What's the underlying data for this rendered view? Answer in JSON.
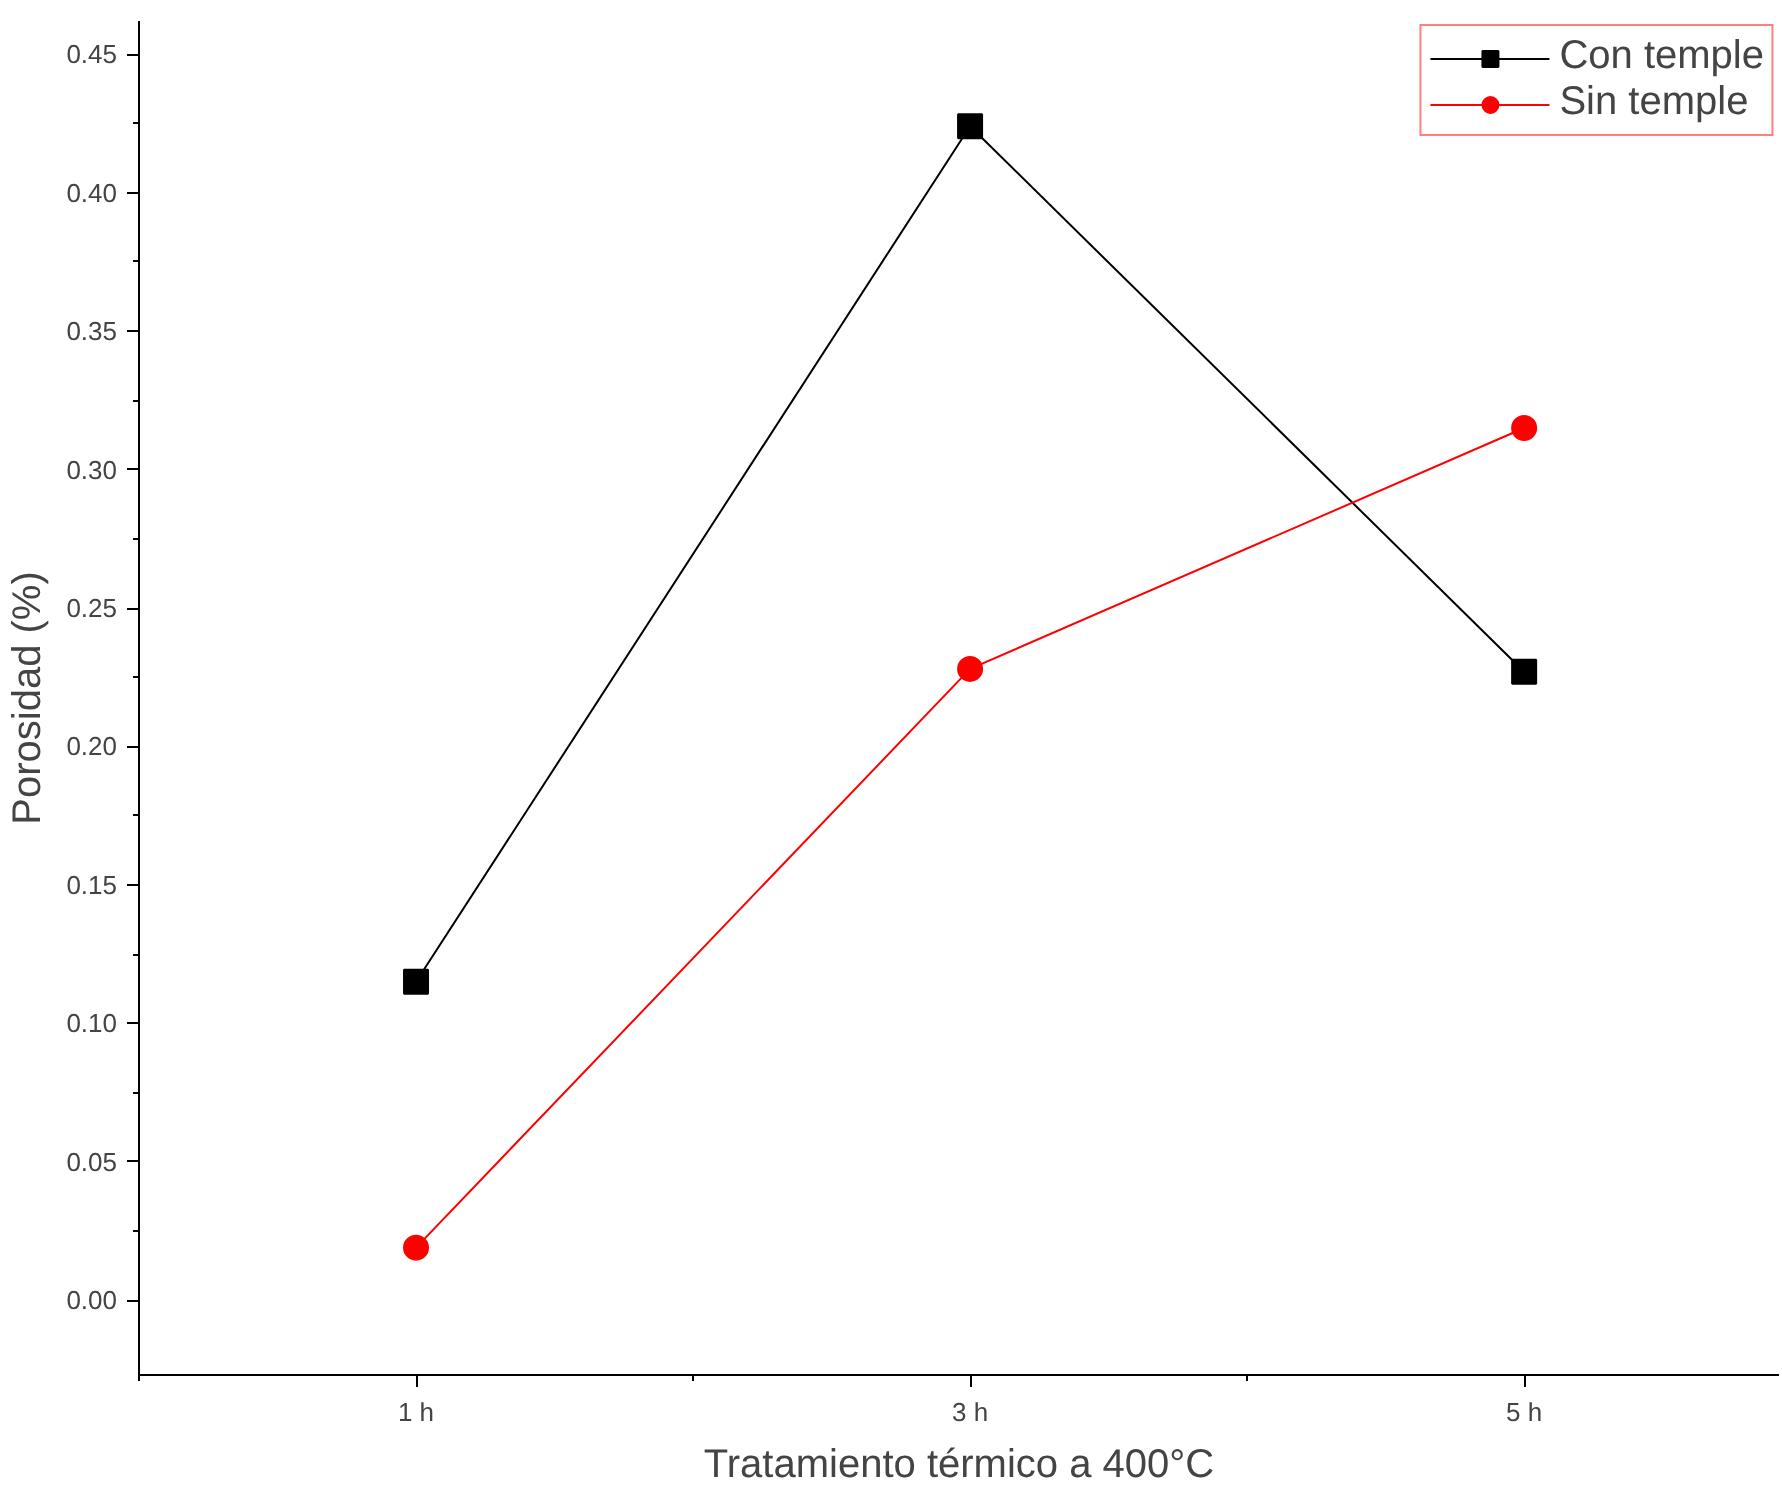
{
  "chart_data": {
    "type": "line",
    "xlabel": "Tratamiento térmico a 400°C",
    "ylabel": "Porosidad (%)",
    "categories": [
      "1 h",
      "3 h",
      "5 h"
    ],
    "series": [
      {
        "name": "Con temple",
        "color": "#000000",
        "marker": "square",
        "values": [
          0.115,
          0.424,
          0.227
        ]
      },
      {
        "name": "Sin temple",
        "color": "#ff0000",
        "marker": "circle",
        "values": [
          0.019,
          0.228,
          0.315
        ]
      }
    ],
    "ylim": [
      -0.027,
      0.462
    ],
    "yticks": [
      {
        "value": 0,
        "label": "0.00"
      },
      {
        "value": 0.05,
        "label": "0.05"
      },
      {
        "value": 0.1,
        "label": "0.10"
      },
      {
        "value": 0.15,
        "label": "0.15"
      },
      {
        "value": 0.2,
        "label": "0.20"
      },
      {
        "value": 0.25,
        "label": "0.25"
      },
      {
        "value": 0.3,
        "label": "0.30"
      },
      {
        "value": 0.35,
        "label": "0.35"
      },
      {
        "value": 0.4,
        "label": "0.40"
      },
      {
        "value": 0.45,
        "label": "0.45"
      }
    ],
    "grid": false,
    "legend": "top right",
    "line_style": "solid"
  }
}
